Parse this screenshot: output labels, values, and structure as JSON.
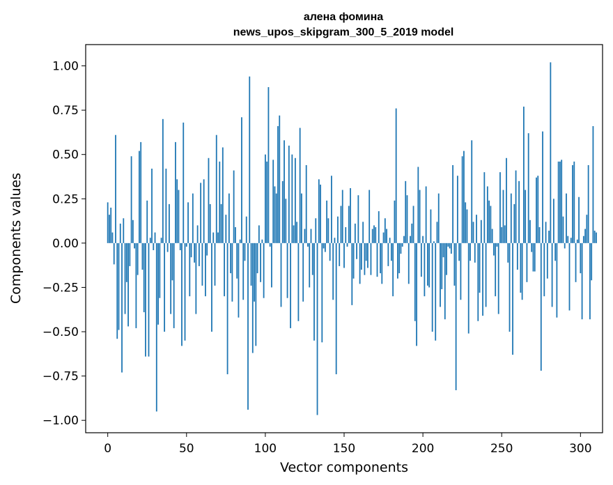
{
  "chart_data": {
    "type": "bar",
    "title": [
      "алена фомина",
      "news_upos_skipgram_300_5_2019 model"
    ],
    "xlabel": "Vector components",
    "ylabel": "Components values",
    "xlim": [
      -14,
      314
    ],
    "ylim": [
      -1.07,
      1.12
    ],
    "xticks": [
      0,
      50,
      100,
      150,
      200,
      250,
      300
    ],
    "xtick_labels": [
      "0",
      "50",
      "100",
      "150",
      "200",
      "250",
      "300"
    ],
    "yticks": [
      -1.0,
      -0.75,
      -0.5,
      -0.25,
      0.0,
      0.25,
      0.5,
      0.75,
      1.0
    ],
    "ytick_labels": [
      "−1.00",
      "−0.75",
      "−0.50",
      "−0.25",
      "0.00",
      "0.25",
      "0.50",
      "0.75",
      "1.00"
    ],
    "grid": false,
    "bar_color": "#1f77b4",
    "values": [
      0.23,
      0.16,
      0.2,
      0.06,
      -0.12,
      0.61,
      -0.54,
      -0.49,
      0.11,
      -0.73,
      0.14,
      -0.4,
      -0.22,
      -0.47,
      -0.13,
      0.49,
      0.13,
      -0.03,
      -0.48,
      -0.18,
      0.52,
      0.57,
      -0.15,
      -0.39,
      -0.64,
      0.24,
      -0.64,
      0.03,
      0.42,
      -0.04,
      0.06,
      -0.95,
      -0.46,
      -0.31,
      0.03,
      0.7,
      -0.5,
      0.42,
      -0.05,
      0.22,
      -0.4,
      -0.21,
      -0.48,
      0.57,
      0.36,
      0.3,
      -0.04,
      -0.58,
      0.68,
      -0.55,
      -0.02,
      0.23,
      -0.3,
      -0.08,
      0.28,
      -0.11,
      -0.4,
      0.1,
      -0.13,
      0.34,
      -0.24,
      0.36,
      -0.3,
      -0.07,
      0.48,
      0.22,
      -0.5,
      0.06,
      -0.24,
      0.61,
      0.06,
      0.46,
      0.22,
      0.54,
      -0.3,
      0.16,
      -0.74,
      0.28,
      -0.17,
      -0.33,
      0.41,
      0.09,
      -0.2,
      -0.42,
      0.02,
      0.71,
      -0.32,
      -0.1,
      0.15,
      -0.94,
      0.94,
      -0.24,
      -0.62,
      -0.33,
      -0.58,
      -0.17,
      0.1,
      -0.22,
      0.02,
      -0.31,
      0.5,
      0.46,
      0.88,
      -0.02,
      -0.25,
      0.47,
      0.32,
      0.28,
      0.66,
      0.72,
      -0.36,
      0.35,
      0.58,
      0.25,
      -0.31,
      0.55,
      -0.48,
      0.5,
      0.1,
      0.48,
      0.12,
      -0.44,
      0.65,
      0.28,
      -0.33,
      0.08,
      0.44,
      -0.02,
      -0.25,
      0.08,
      -0.18,
      -0.55,
      0.14,
      -0.97,
      0.36,
      0.33,
      -0.56,
      -0.03,
      -0.05,
      0.24,
      0.14,
      -0.1,
      0.38,
      -0.32,
      0.03,
      -0.74,
      0.15,
      -0.13,
      0.21,
      0.3,
      -0.14,
      0.09,
      -0.02,
      0.21,
      0.31,
      -0.35,
      -0.2,
      0.11,
      -0.09,
      0.27,
      -0.23,
      -0.15,
      0.12,
      -0.18,
      -0.1,
      -0.14,
      0.3,
      -0.18,
      0.08,
      0.1,
      0.09,
      -0.19,
      0.18,
      -0.17,
      -0.23,
      0.06,
      0.14,
      0.08,
      -0.13,
      0.03,
      -0.1,
      -0.3,
      0.24,
      0.76,
      -0.2,
      -0.17,
      -0.06,
      -0.02,
      0.04,
      0.35,
      0.27,
      -0.23,
      0.04,
      0.11,
      0.21,
      -0.44,
      -0.58,
      0.43,
      0.3,
      -0.19,
      0.04,
      -0.3,
      0.32,
      -0.24,
      -0.25,
      0.19,
      -0.5,
      0.01,
      -0.55,
      0.12,
      0.28,
      -0.36,
      -0.26,
      -0.08,
      -0.43,
      -0.18,
      -0.02,
      -0.03,
      -0.06,
      0.44,
      -0.24,
      -0.83,
      0.38,
      -0.1,
      -0.32,
      0.49,
      0.52,
      0.23,
      0.19,
      -0.51,
      -0.1,
      0.58,
      0.12,
      -0.11,
      0.16,
      -0.44,
      -0.28,
      0.13,
      -0.41,
      0.4,
      -0.36,
      0.32,
      0.24,
      0.21,
      0.08,
      -0.07,
      -0.3,
      -0.02,
      -0.4,
      0.4,
      0.09,
      0.3,
      0.1,
      0.48,
      -0.11,
      -0.5,
      0.28,
      -0.63,
      0.22,
      0.41,
      -0.15,
      0.35,
      -0.28,
      -0.32,
      0.77,
      0.3,
      -0.22,
      0.62,
      0.13,
      -0.05,
      -0.16,
      -0.16,
      0.37,
      0.38,
      0.09,
      -0.72,
      0.63,
      -0.3,
      0.12,
      -0.2,
      0.07,
      1.02,
      -0.36,
      0.25,
      -0.1,
      -0.42,
      0.46,
      0.46,
      0.47,
      0.15,
      -0.03,
      0.28,
      0.04,
      -0.38,
      0.03,
      0.44,
      0.46,
      -0.22,
      0.02,
      0.26,
      -0.17,
      -0.43,
      0.04,
      0.08,
      0.16,
      0.44,
      -0.43,
      -0.21,
      0.66,
      0.07,
      0.06
    ]
  }
}
